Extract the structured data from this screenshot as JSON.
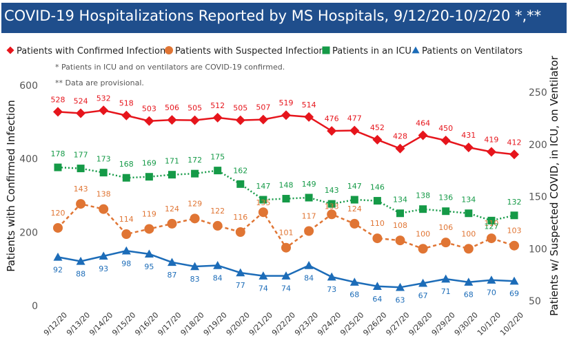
{
  "title": "COVID-19 Hospitalizations Reported by MS Hospitals, 9/12/20-10/2/20 *,**",
  "notes": [
    "* Patients in ICU and on ventilators are COVID-19 confirmed.",
    "** Data are provisional."
  ],
  "colors": {
    "title_bg": "#1f4e8c",
    "confirmed": "#e6151c",
    "suspected": "#e07534",
    "icu": "#159a47",
    "ventilators": "#1c6cb8"
  },
  "chart_data": {
    "type": "line",
    "x": [
      "9/12/20",
      "9/13/20",
      "9/14/20",
      "9/15/20",
      "9/16/20",
      "9/17/20",
      "9/18/20",
      "9/19/20",
      "9/20/20",
      "9/21/20",
      "9/22/20",
      "9/23/20",
      "9/24/20",
      "9/25/20",
      "9/26/20",
      "9/27/20",
      "9/28/20",
      "9/29/20",
      "9/30/20",
      "10/1/20",
      "10/2/20"
    ],
    "ylabel_left": "Patients with Confirmed Infection",
    "ylabel_right": "Patients w/ Suspected COVID, in ICU, on Ventilator",
    "ylim_left": [
      0,
      600
    ],
    "yticks_left": [
      "0",
      "200",
      "400",
      "600"
    ],
    "ylim_right": [
      50,
      250
    ],
    "yticks_right": [
      "50",
      "100",
      "150",
      "200",
      "250"
    ],
    "legend_position": "top",
    "grid": false,
    "series": [
      {
        "name": "Patients with Confirmed Infection",
        "axis": "left",
        "marker": "diamond",
        "line": "solid",
        "values": [
          528,
          524,
          532,
          518,
          503,
          506,
          505,
          512,
          505,
          507,
          519,
          514,
          476,
          477,
          452,
          428,
          464,
          450,
          431,
          419,
          412
        ]
      },
      {
        "name": "Patients with Suspected Infection",
        "axis": "right",
        "marker": "circle",
        "line": "dashed",
        "values": [
          120,
          143,
          138,
          114,
          119,
          124,
          129,
          122,
          116,
          135,
          101,
          117,
          133,
          124,
          110,
          108,
          100,
          106,
          100,
          110,
          103
        ]
      },
      {
        "name": "Patients in an ICU",
        "axis": "right",
        "marker": "square",
        "line": "dotted",
        "values": [
          178,
          177,
          173,
          168,
          169,
          171,
          172,
          175,
          162,
          147,
          148,
          149,
          143,
          147,
          146,
          134,
          138,
          136,
          134,
          127,
          132
        ]
      },
      {
        "name": "Patients on Ventilators",
        "axis": "right",
        "marker": "triangle",
        "line": "solid",
        "values": [
          92,
          88,
          93,
          98,
          95,
          87,
          83,
          84,
          77,
          74,
          74,
          84,
          73,
          68,
          64,
          63,
          67,
          71,
          68,
          70,
          69
        ]
      }
    ]
  }
}
